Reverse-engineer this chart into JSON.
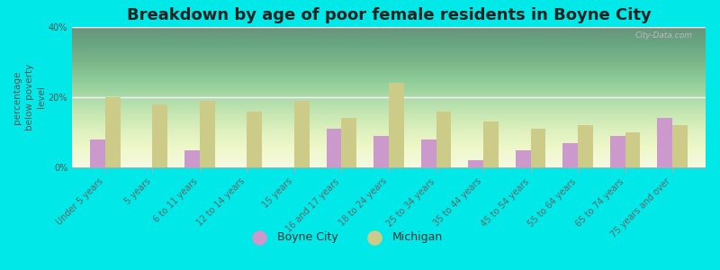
{
  "title": "Breakdown by age of poor female residents in Boyne City",
  "ylabel": "percentage\nbelow poverty\nlevel",
  "categories": [
    "Under 5 years",
    "5 years",
    "6 to 11 years",
    "12 to 14 years",
    "15 years",
    "16 and 17 years",
    "18 to 24 years",
    "25 to 34 years",
    "35 to 44 years",
    "45 to 54 years",
    "55 to 64 years",
    "65 to 74 years",
    "75 years and over"
  ],
  "boyne_city": [
    8,
    0,
    5,
    0,
    0,
    11,
    9,
    8,
    2,
    5,
    7,
    9,
    14
  ],
  "michigan": [
    20,
    18,
    19,
    16,
    19,
    14,
    24,
    16,
    13,
    11,
    12,
    10,
    12
  ],
  "boyne_color": "#cc99cc",
  "michigan_color": "#cccc88",
  "bg_outer": "#00e8e8",
  "plot_bg_top": "#f0f8e8",
  "plot_bg_bottom": "#d8eec8",
  "ylim": [
    0,
    40
  ],
  "yticks": [
    0,
    20,
    40
  ],
  "ytick_labels": [
    "0%",
    "20%",
    "40%"
  ],
  "title_fontsize": 13,
  "axis_label_fontsize": 7.5,
  "tick_fontsize": 7,
  "legend_fontsize": 9,
  "bar_width": 0.32,
  "watermark": "City-Data.com"
}
